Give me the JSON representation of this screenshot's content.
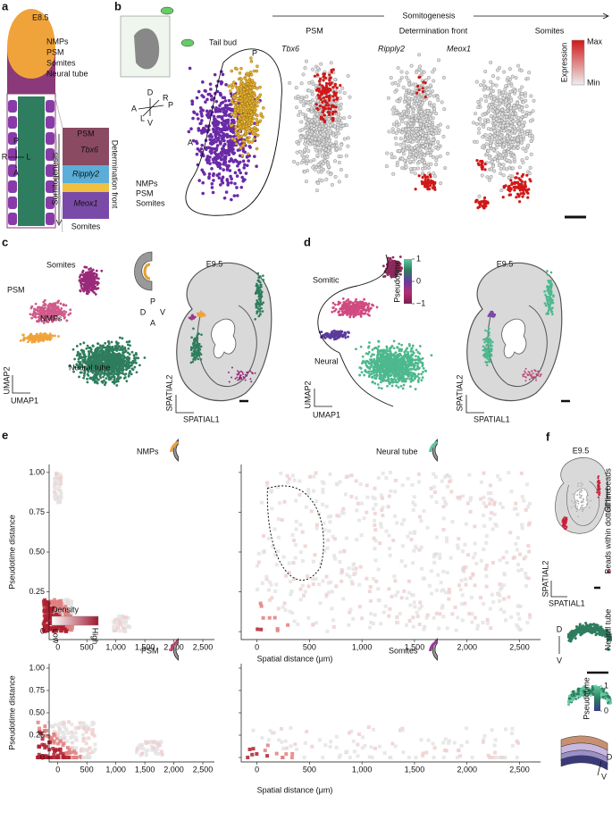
{
  "panel_a": {
    "label": "a",
    "stage": "E8.5",
    "legend": [
      "NMPs",
      "PSM",
      "Somites",
      "Neural tube"
    ],
    "compass": [
      "P",
      "R",
      "L",
      "A"
    ],
    "inset": {
      "top": "PSM",
      "gene1": "Tbx6",
      "gene2": "Ripply2",
      "gene3": "Meox1",
      "bottom": "Somites",
      "left_axis": "Somitogenesis",
      "right_axis": "Determination front"
    }
  },
  "panel_b": {
    "label": "b",
    "process": "Somitogenesis",
    "stages": [
      "PSM",
      "Determination front",
      "Somites"
    ],
    "region": "Tail bud",
    "genes": [
      "Tbx6",
      "Ripply2",
      "Meox1"
    ],
    "colorbar": {
      "title": "Expression",
      "max": "Max",
      "min": "Min"
    },
    "compass": [
      "D",
      "R",
      "A",
      "P",
      "L",
      "V"
    ],
    "outline": [
      "P",
      "A"
    ],
    "legend": [
      "NMPs",
      "PSM",
      "Somites"
    ]
  },
  "panel_c": {
    "label": "c",
    "clusters": [
      "Somites",
      "PSM",
      "NMPs",
      "Neural tube"
    ],
    "umap_axes": [
      "UMAP2",
      "UMAP1"
    ],
    "compass": [
      "P",
      "D",
      "V",
      "A"
    ],
    "stage": "E9.5",
    "spatial_axes": [
      "SPATIAL2",
      "SPATIAL1"
    ]
  },
  "panel_d": {
    "label": "d",
    "trajectories": [
      "Somitic",
      "Neural"
    ],
    "umap_axes": [
      "UMAP2",
      "UMAP1"
    ],
    "colorbar": {
      "title": "Pseudotime",
      "ticks": [
        1,
        0,
        {
          "value": -1,
          "label": "−1"
        }
      ]
    },
    "stage": "E9.5",
    "spatial_axes": [
      "SPATIAL2",
      "SPATIAL1"
    ]
  },
  "panel_e": {
    "label": "e",
    "y_title": "Pseudotime distance",
    "x_title": "Spatial distance (μm)",
    "xlim": [
      -150,
      2700
    ],
    "ylim": [
      -0.05,
      1.05
    ],
    "xticks": [
      0,
      500,
      {
        "value": 1000,
        "label": "1,000"
      },
      {
        "value": 1500,
        "label": "1,500"
      },
      {
        "value": 2000,
        "label": "2,000"
      },
      {
        "value": 2500,
        "label": "2,500"
      }
    ],
    "yticks": [
      0,
      0.25,
      {
        "value": 0.5,
        "label": "0.50"
      },
      0.75,
      {
        "value": 1,
        "label": "1.00"
      }
    ],
    "plots": [
      "NMPs",
      "Neural tube",
      "PSM",
      "Somites"
    ],
    "density_legend": {
      "title": "Density",
      "low": "Low",
      "high": "High"
    }
  },
  "panel_f": {
    "label": "f",
    "stage": "E9.5",
    "legend": [
      "Beads within dotted line",
      "Other beads"
    ],
    "spatial_axes": [
      "SPATIAL2",
      "SPATIAL1"
    ],
    "cluster": "Neural tube",
    "dv": [
      "D",
      "V"
    ],
    "colorbar": {
      "title": "Pseudotime",
      "ticks": [
        1,
        0
      ]
    },
    "layers_dv": [
      "D",
      "V"
    ]
  }
}
